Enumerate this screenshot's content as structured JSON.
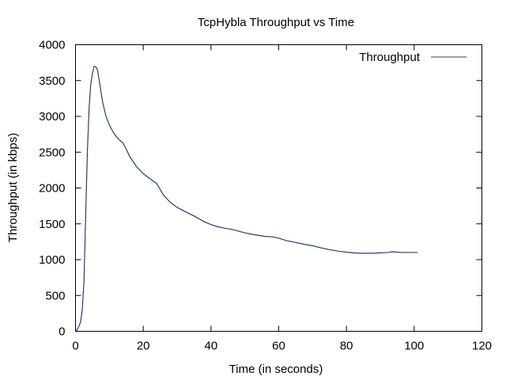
{
  "chart_data": {
    "type": "line",
    "title": "TcpHybla Throughput vs Time",
    "xlabel": "Time (in seconds)",
    "ylabel": "Throughput (in kbps)",
    "xlim": [
      0,
      120
    ],
    "ylim": [
      0,
      4000
    ],
    "xticks": [
      "0",
      "20",
      "40",
      "60",
      "80",
      "100",
      "120"
    ],
    "yticks": [
      "0",
      "500",
      "1000",
      "1500",
      "2000",
      "2500",
      "3000",
      "3500",
      "4000"
    ],
    "grid": false,
    "legend_position": "top-right",
    "series": [
      {
        "name": "Throughput",
        "color": "#243e6e",
        "x": [
          0,
          0.5,
          1,
          1.5,
          2,
          2.5,
          3,
          3.5,
          4,
          4.5,
          5,
          5.5,
          6,
          6.5,
          7,
          8,
          9,
          10,
          11,
          12,
          13,
          14,
          15,
          16,
          17,
          18,
          19,
          20,
          22,
          24,
          26,
          28,
          30,
          32,
          35,
          38,
          40,
          42,
          44,
          46,
          48,
          50,
          52,
          54,
          56,
          58,
          60,
          62,
          65,
          68,
          70,
          72,
          75,
          78,
          80,
          82,
          84,
          86,
          88,
          90,
          92,
          94,
          96,
          98,
          100,
          101
        ],
        "y": [
          0,
          20,
          70,
          130,
          300,
          700,
          1600,
          2500,
          3100,
          3450,
          3600,
          3700,
          3690,
          3650,
          3500,
          3200,
          3000,
          2880,
          2790,
          2720,
          2670,
          2630,
          2540,
          2440,
          2370,
          2300,
          2250,
          2200,
          2130,
          2060,
          1900,
          1800,
          1730,
          1680,
          1610,
          1530,
          1490,
          1460,
          1440,
          1425,
          1400,
          1375,
          1355,
          1340,
          1325,
          1320,
          1300,
          1270,
          1240,
          1210,
          1195,
          1170,
          1140,
          1115,
          1105,
          1095,
          1090,
          1090,
          1090,
          1095,
          1100,
          1110,
          1100,
          1100,
          1100,
          1100
        ]
      }
    ]
  }
}
